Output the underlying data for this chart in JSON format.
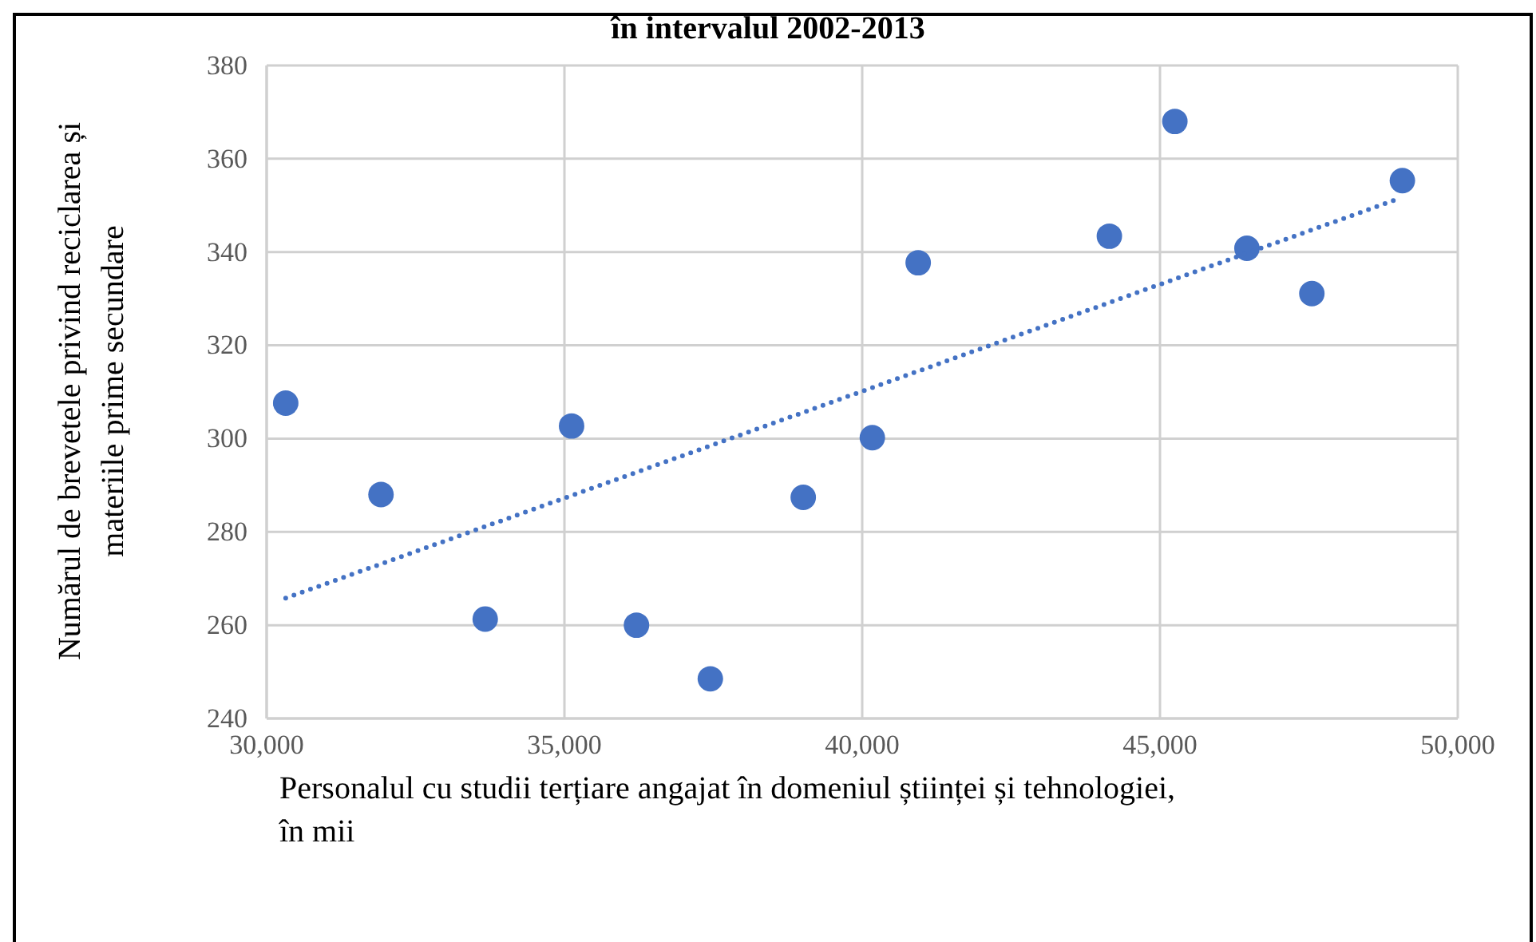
{
  "chart_data": {
    "type": "scatter",
    "title": "în intervalul 2002-2013",
    "xlabel": "Personalul cu studii terțiare angajat în domeniul științei și tehnologiei,\nîn mii",
    "ylabel": "Numărul de brevetele privind reciclarea și\nmateriile prime secundare",
    "xlim": [
      30000,
      50000
    ],
    "ylim": [
      240,
      380
    ],
    "xticks": [
      {
        "value": 30000,
        "label": "30,000"
      },
      {
        "value": 35000,
        "label": "35,000"
      },
      {
        "value": 40000,
        "label": "40,000"
      },
      {
        "value": 45000,
        "label": "45,000"
      },
      {
        "value": 50000,
        "label": "50,000"
      }
    ],
    "yticks": [
      240,
      260,
      280,
      300,
      320,
      340,
      360,
      380
    ],
    "grid": true,
    "marker": "circle",
    "series": [
      {
        "color": "#4472c4",
        "x": [
          30320,
          31920,
          33670,
          35120,
          36210,
          37450,
          39010,
          40170,
          40940,
          44150,
          45250,
          46460,
          47550,
          49070
        ],
        "values": [
          307.6,
          288,
          261.3,
          302.7,
          260,
          248.5,
          287.4,
          300.2,
          337.7,
          343.4,
          368,
          340.8,
          331.1,
          355.3
        ]
      },
      {
        "type": "line",
        "color": "#4472c4",
        "line_style": "dotted",
        "marker": "none",
        "x": [
          30320,
          48980
        ],
        "values": [
          265.8,
          351.3
        ]
      }
    ]
  }
}
